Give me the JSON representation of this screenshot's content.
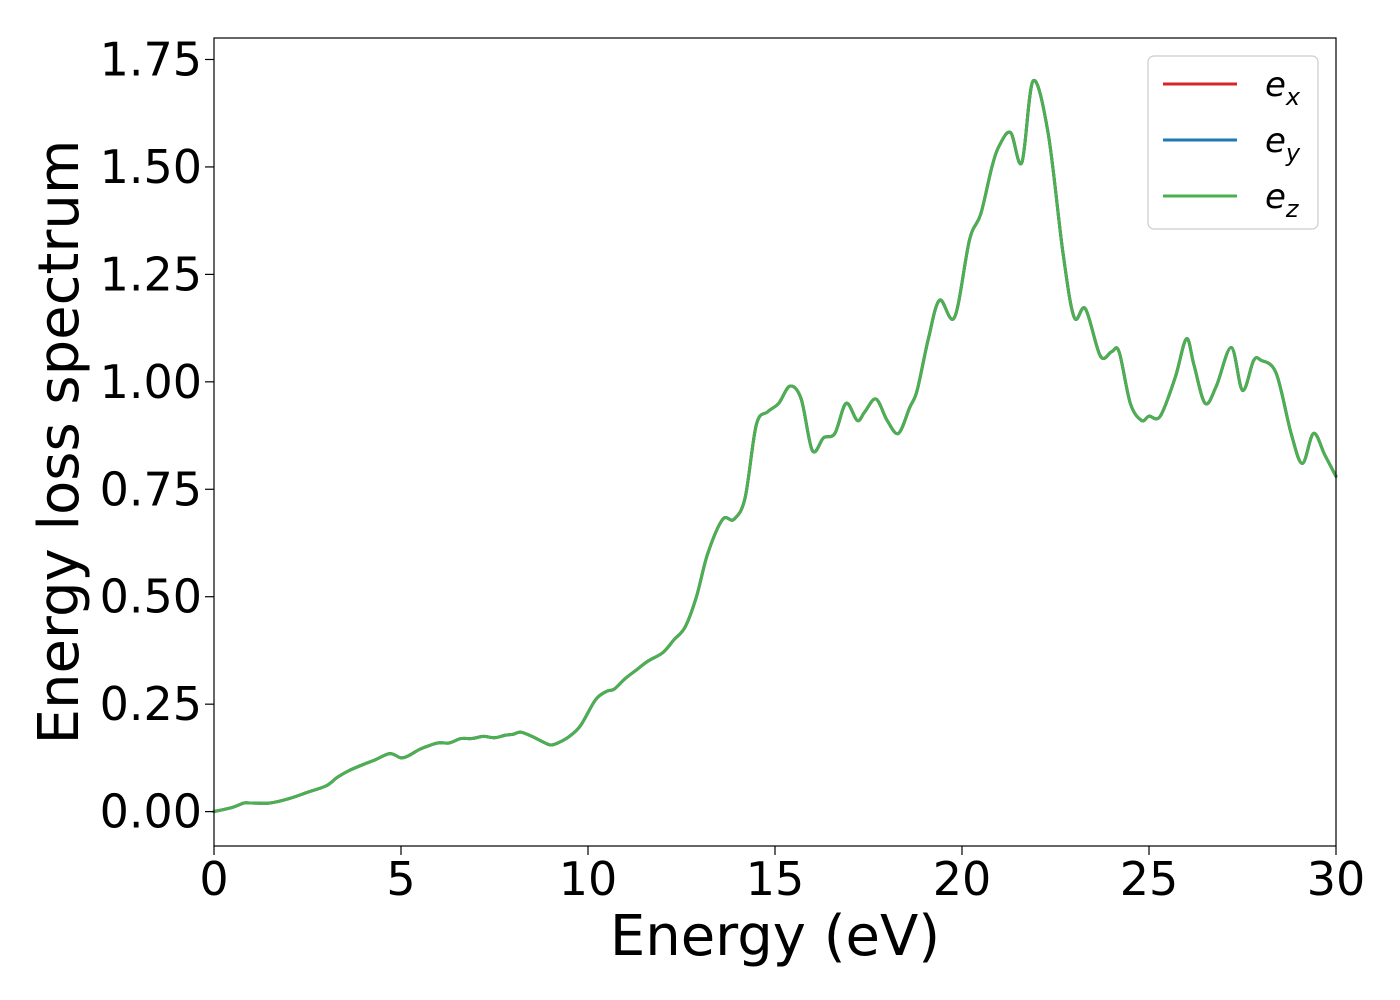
{
  "chart_data": {
    "type": "line",
    "xlabel": "Energy (eV)",
    "ylabel": "Energy loss spectrum",
    "xlim": [
      0,
      30
    ],
    "ylim": [
      -0.08,
      1.8
    ],
    "x_ticks": [
      "0",
      "5",
      "10",
      "15",
      "20",
      "25",
      "30"
    ],
    "y_ticks": [
      "0.00",
      "0.25",
      "0.50",
      "0.75",
      "1.00",
      "1.25",
      "1.50",
      "1.75"
    ],
    "grid": false,
    "legend_position": "top-right",
    "colors": {
      "ex": "#d62728",
      "ey": "#1f77b4",
      "ez": "#4caf50"
    },
    "legend": [
      {
        "base": "e",
        "sub": "x",
        "color": "#d62728"
      },
      {
        "base": "e",
        "sub": "y",
        "color": "#1f77b4"
      },
      {
        "base": "e",
        "sub": "z",
        "color": "#4caf50"
      }
    ],
    "x": [
      0,
      0.5,
      0.8,
      1.0,
      1.5,
      2.0,
      2.5,
      3.0,
      3.3,
      3.6,
      4.0,
      4.3,
      4.7,
      5.0,
      5.2,
      5.5,
      5.8,
      6.0,
      6.3,
      6.6,
      6.9,
      7.2,
      7.5,
      7.8,
      8.0,
      8.2,
      8.5,
      8.8,
      9.0,
      9.2,
      9.5,
      9.8,
      10.2,
      10.5,
      10.7,
      11.0,
      11.3,
      11.6,
      12.0,
      12.3,
      12.6,
      12.9,
      13.2,
      13.6,
      13.9,
      14.2,
      14.5,
      14.8,
      15.1,
      15.4,
      15.7,
      16.0,
      16.3,
      16.6,
      16.9,
      17.2,
      17.4,
      17.7,
      18.0,
      18.3,
      18.6,
      18.8,
      19.1,
      19.4,
      19.8,
      20.2,
      20.5,
      20.8,
      21.0,
      21.3,
      21.6,
      21.9,
      22.3,
      22.7,
      23.0,
      23.3,
      23.7,
      24.0,
      24.2,
      24.5,
      24.8,
      25.0,
      25.3,
      25.7,
      26.0,
      26.2,
      26.5,
      26.8,
      27.2,
      27.5,
      27.8,
      28.0,
      28.4,
      28.8,
      29.1,
      29.4,
      29.7,
      30.0
    ],
    "series": [
      {
        "key": "ex",
        "values": [
          0.0,
          0.01,
          0.02,
          0.02,
          0.02,
          0.03,
          0.045,
          0.06,
          0.08,
          0.095,
          0.11,
          0.12,
          0.135,
          0.125,
          0.13,
          0.145,
          0.155,
          0.16,
          0.16,
          0.17,
          0.17,
          0.175,
          0.172,
          0.178,
          0.18,
          0.185,
          0.175,
          0.162,
          0.155,
          0.16,
          0.175,
          0.2,
          0.26,
          0.28,
          0.285,
          0.31,
          0.33,
          0.35,
          0.37,
          0.4,
          0.43,
          0.5,
          0.6,
          0.68,
          0.68,
          0.73,
          0.9,
          0.93,
          0.95,
          0.99,
          0.96,
          0.84,
          0.87,
          0.88,
          0.95,
          0.91,
          0.93,
          0.96,
          0.91,
          0.88,
          0.94,
          0.98,
          1.1,
          1.19,
          1.15,
          1.33,
          1.39,
          1.5,
          1.55,
          1.58,
          1.51,
          1.7,
          1.58,
          1.3,
          1.15,
          1.17,
          1.06,
          1.07,
          1.07,
          0.95,
          0.91,
          0.92,
          0.92,
          1.01,
          1.1,
          1.04,
          0.95,
          0.99,
          1.08,
          0.98,
          1.05,
          1.05,
          1.02,
          0.88,
          0.81,
          0.88,
          0.83,
          0.78
        ]
      },
      {
        "key": "ey",
        "values": [
          0.0,
          0.01,
          0.02,
          0.02,
          0.02,
          0.03,
          0.045,
          0.06,
          0.08,
          0.095,
          0.11,
          0.12,
          0.135,
          0.125,
          0.13,
          0.145,
          0.155,
          0.16,
          0.16,
          0.17,
          0.17,
          0.175,
          0.172,
          0.178,
          0.18,
          0.185,
          0.175,
          0.162,
          0.155,
          0.16,
          0.175,
          0.2,
          0.26,
          0.28,
          0.285,
          0.31,
          0.33,
          0.35,
          0.37,
          0.4,
          0.43,
          0.5,
          0.6,
          0.68,
          0.68,
          0.73,
          0.9,
          0.93,
          0.95,
          0.99,
          0.96,
          0.84,
          0.87,
          0.88,
          0.95,
          0.91,
          0.93,
          0.96,
          0.91,
          0.88,
          0.94,
          0.98,
          1.1,
          1.19,
          1.15,
          1.33,
          1.39,
          1.5,
          1.55,
          1.58,
          1.51,
          1.7,
          1.58,
          1.3,
          1.15,
          1.17,
          1.06,
          1.07,
          1.07,
          0.95,
          0.91,
          0.92,
          0.92,
          1.01,
          1.1,
          1.04,
          0.95,
          0.99,
          1.08,
          0.98,
          1.05,
          1.05,
          1.02,
          0.88,
          0.81,
          0.88,
          0.83,
          0.78
        ]
      },
      {
        "key": "ez",
        "values": [
          0.0,
          0.01,
          0.02,
          0.02,
          0.02,
          0.03,
          0.045,
          0.06,
          0.08,
          0.095,
          0.11,
          0.12,
          0.135,
          0.125,
          0.13,
          0.145,
          0.155,
          0.16,
          0.16,
          0.17,
          0.17,
          0.175,
          0.172,
          0.178,
          0.18,
          0.185,
          0.175,
          0.162,
          0.155,
          0.16,
          0.175,
          0.2,
          0.26,
          0.28,
          0.285,
          0.31,
          0.33,
          0.35,
          0.37,
          0.4,
          0.43,
          0.5,
          0.6,
          0.68,
          0.68,
          0.73,
          0.9,
          0.93,
          0.95,
          0.99,
          0.96,
          0.84,
          0.87,
          0.88,
          0.95,
          0.91,
          0.93,
          0.96,
          0.91,
          0.88,
          0.94,
          0.98,
          1.1,
          1.19,
          1.15,
          1.33,
          1.39,
          1.5,
          1.55,
          1.58,
          1.51,
          1.7,
          1.58,
          1.3,
          1.15,
          1.17,
          1.06,
          1.07,
          1.07,
          0.95,
          0.91,
          0.92,
          0.92,
          1.01,
          1.1,
          1.04,
          0.95,
          0.99,
          1.08,
          0.98,
          1.05,
          1.05,
          1.02,
          0.88,
          0.81,
          0.88,
          0.83,
          0.78
        ]
      }
    ]
  }
}
